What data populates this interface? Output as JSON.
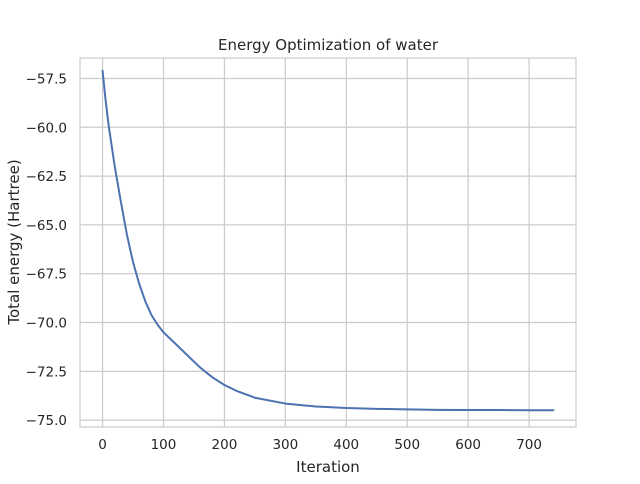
{
  "chart_data": {
    "type": "line",
    "title": "Energy Optimization of water",
    "xlabel": "Iteration",
    "ylabel": "Total energy (Hartree)",
    "xlim": [
      -37,
      777
    ],
    "ylim": [
      -75.35,
      -56.45
    ],
    "xticks": [
      0,
      100,
      200,
      300,
      400,
      500,
      600,
      700
    ],
    "xtick_labels": [
      "0",
      "100",
      "200",
      "300",
      "400",
      "500",
      "600",
      "700"
    ],
    "yticks": [
      -57.5,
      -60.0,
      -62.5,
      -65.0,
      -67.5,
      -70.0,
      -72.5,
      -75.0
    ],
    "ytick_labels": [
      "−57.5",
      "−60.0",
      "−62.5",
      "−65.0",
      "−67.5",
      "−70.0",
      "−72.5",
      "−75.0"
    ],
    "grid": true,
    "series": [
      {
        "color": "#4c72b0",
        "x": [
          0,
          5,
          10,
          20,
          30,
          40,
          50,
          60,
          70,
          80,
          90,
          100,
          120,
          140,
          160,
          180,
          200,
          220,
          250,
          300,
          350,
          400,
          450,
          500,
          550,
          600,
          650,
          700,
          740
        ],
        "y": [
          -57.1,
          -58.6,
          -59.9,
          -62.0,
          -63.8,
          -65.5,
          -66.9,
          -68.0,
          -68.9,
          -69.6,
          -70.1,
          -70.5,
          -71.1,
          -71.7,
          -72.3,
          -72.8,
          -73.2,
          -73.5,
          -73.85,
          -74.15,
          -74.3,
          -74.38,
          -74.42,
          -74.45,
          -74.47,
          -74.48,
          -74.48,
          -74.49,
          -74.49
        ]
      }
    ]
  }
}
